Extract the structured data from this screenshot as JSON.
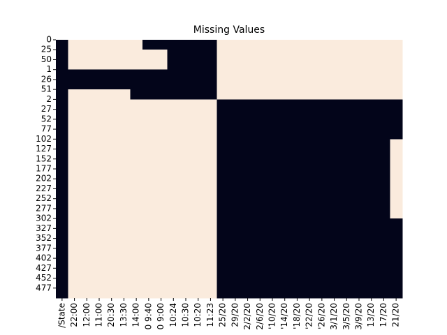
{
  "chart_data": {
    "type": "heatmap",
    "title": "Missing Values",
    "colors": {
      "0": "#03051a",
      "1": "#faebdd"
    },
    "x_labels": [
      "/State",
      "22:00",
      "12:00",
      "11:00",
      "20:30",
      "13:30",
      "14:00",
      "0 9:40",
      "0 9:00",
      "10:24",
      "10:30",
      "10:20",
      "11:23",
      "25/20",
      "29/20",
      "2/2/20",
      "2/6/20",
      "'10/20",
      "'14/20",
      "'18/20",
      "'22/20",
      "'26/20",
      "3/1/20",
      "3/5/20",
      "3/9/20",
      "13/20",
      "17/20",
      "21/20"
    ],
    "y_labels": [
      "0",
      "25",
      "50",
      "1",
      "26",
      "51",
      "2",
      "27",
      "52",
      "77",
      "102",
      "127",
      "152",
      "177",
      "202",
      "227",
      "252",
      "277",
      "302",
      "327",
      "352",
      "377",
      "402",
      "427",
      "452",
      "477"
    ],
    "values": [
      [
        0,
        1,
        1,
        1,
        1,
        1,
        1,
        0,
        0,
        0,
        0,
        0,
        0,
        1,
        1,
        1,
        1,
        1,
        1,
        1,
        1,
        1,
        1,
        1,
        1,
        1,
        1,
        1
      ],
      [
        0,
        1,
        1,
        1,
        1,
        1,
        1,
        1,
        1,
        0,
        0,
        0,
        0,
        1,
        1,
        1,
        1,
        1,
        1,
        1,
        1,
        1,
        1,
        1,
        1,
        1,
        1,
        1
      ],
      [
        0,
        1,
        1,
        1,
        1,
        1,
        1,
        1,
        1,
        0,
        0,
        0,
        0,
        1,
        1,
        1,
        1,
        1,
        1,
        1,
        1,
        1,
        1,
        1,
        1,
        1,
        1,
        1
      ],
      [
        0,
        0,
        0,
        0,
        0,
        0,
        0,
        0,
        0,
        0,
        0,
        0,
        0,
        1,
        1,
        1,
        1,
        1,
        1,
        1,
        1,
        1,
        1,
        1,
        1,
        1,
        1,
        1
      ],
      [
        0,
        0,
        0,
        0,
        0,
        0,
        0,
        0,
        0,
        0,
        0,
        0,
        0,
        1,
        1,
        1,
        1,
        1,
        1,
        1,
        1,
        1,
        1,
        1,
        1,
        1,
        1,
        1
      ],
      [
        0,
        1,
        1,
        1,
        1,
        1,
        0,
        0,
        0,
        0,
        0,
        0,
        0,
        1,
        1,
        1,
        1,
        1,
        1,
        1,
        1,
        1,
        1,
        1,
        1,
        1,
        1,
        1
      ],
      [
        0,
        1,
        1,
        1,
        1,
        1,
        1,
        1,
        1,
        1,
        1,
        1,
        1,
        0,
        0,
        0,
        0,
        0,
        0,
        0,
        0,
        0,
        0,
        0,
        0,
        0,
        0,
        0
      ],
      [
        0,
        1,
        1,
        1,
        1,
        1,
        1,
        1,
        1,
        1,
        1,
        1,
        1,
        0,
        0,
        0,
        0,
        0,
        0,
        0,
        0,
        0,
        0,
        0,
        0,
        0,
        0,
        0
      ],
      [
        0,
        1,
        1,
        1,
        1,
        1,
        1,
        1,
        1,
        1,
        1,
        1,
        1,
        0,
        0,
        0,
        0,
        0,
        0,
        0,
        0,
        0,
        0,
        0,
        0,
        0,
        0,
        0
      ],
      [
        0,
        1,
        1,
        1,
        1,
        1,
        1,
        1,
        1,
        1,
        1,
        1,
        1,
        0,
        0,
        0,
        0,
        0,
        0,
        0,
        0,
        0,
        0,
        0,
        0,
        0,
        0,
        0
      ],
      [
        0,
        1,
        1,
        1,
        1,
        1,
        1,
        1,
        1,
        1,
        1,
        1,
        1,
        0,
        0,
        0,
        0,
        0,
        0,
        0,
        0,
        0,
        0,
        0,
        0,
        0,
        0,
        1
      ],
      [
        0,
        1,
        1,
        1,
        1,
        1,
        1,
        1,
        1,
        1,
        1,
        1,
        1,
        0,
        0,
        0,
        0,
        0,
        0,
        0,
        0,
        0,
        0,
        0,
        0,
        0,
        0,
        1
      ],
      [
        0,
        1,
        1,
        1,
        1,
        1,
        1,
        1,
        1,
        1,
        1,
        1,
        1,
        0,
        0,
        0,
        0,
        0,
        0,
        0,
        0,
        0,
        0,
        0,
        0,
        0,
        0,
        1
      ],
      [
        0,
        1,
        1,
        1,
        1,
        1,
        1,
        1,
        1,
        1,
        1,
        1,
        1,
        0,
        0,
        0,
        0,
        0,
        0,
        0,
        0,
        0,
        0,
        0,
        0,
        0,
        0,
        1
      ],
      [
        0,
        1,
        1,
        1,
        1,
        1,
        1,
        1,
        1,
        1,
        1,
        1,
        1,
        0,
        0,
        0,
        0,
        0,
        0,
        0,
        0,
        0,
        0,
        0,
        0,
        0,
        0,
        1
      ],
      [
        0,
        1,
        1,
        1,
        1,
        1,
        1,
        1,
        1,
        1,
        1,
        1,
        1,
        0,
        0,
        0,
        0,
        0,
        0,
        0,
        0,
        0,
        0,
        0,
        0,
        0,
        0,
        1
      ],
      [
        0,
        1,
        1,
        1,
        1,
        1,
        1,
        1,
        1,
        1,
        1,
        1,
        1,
        0,
        0,
        0,
        0,
        0,
        0,
        0,
        0,
        0,
        0,
        0,
        0,
        0,
        0,
        1
      ],
      [
        0,
        1,
        1,
        1,
        1,
        1,
        1,
        1,
        1,
        1,
        1,
        1,
        1,
        0,
        0,
        0,
        0,
        0,
        0,
        0,
        0,
        0,
        0,
        0,
        0,
        0,
        0,
        1
      ],
      [
        0,
        1,
        1,
        1,
        1,
        1,
        1,
        1,
        1,
        1,
        1,
        1,
        1,
        0,
        0,
        0,
        0,
        0,
        0,
        0,
        0,
        0,
        0,
        0,
        0,
        0,
        0,
        0
      ],
      [
        0,
        1,
        1,
        1,
        1,
        1,
        1,
        1,
        1,
        1,
        1,
        1,
        1,
        0,
        0,
        0,
        0,
        0,
        0,
        0,
        0,
        0,
        0,
        0,
        0,
        0,
        0,
        0
      ],
      [
        0,
        1,
        1,
        1,
        1,
        1,
        1,
        1,
        1,
        1,
        1,
        1,
        1,
        0,
        0,
        0,
        0,
        0,
        0,
        0,
        0,
        0,
        0,
        0,
        0,
        0,
        0,
        0
      ],
      [
        0,
        1,
        1,
        1,
        1,
        1,
        1,
        1,
        1,
        1,
        1,
        1,
        1,
        0,
        0,
        0,
        0,
        0,
        0,
        0,
        0,
        0,
        0,
        0,
        0,
        0,
        0,
        0
      ],
      [
        0,
        1,
        1,
        1,
        1,
        1,
        1,
        1,
        1,
        1,
        1,
        1,
        1,
        0,
        0,
        0,
        0,
        0,
        0,
        0,
        0,
        0,
        0,
        0,
        0,
        0,
        0,
        0
      ],
      [
        0,
        1,
        1,
        1,
        1,
        1,
        1,
        1,
        1,
        1,
        1,
        1,
        1,
        0,
        0,
        0,
        0,
        0,
        0,
        0,
        0,
        0,
        0,
        0,
        0,
        0,
        0,
        0
      ],
      [
        0,
        1,
        1,
        1,
        1,
        1,
        1,
        1,
        1,
        1,
        1,
        1,
        1,
        0,
        0,
        0,
        0,
        0,
        0,
        0,
        0,
        0,
        0,
        0,
        0,
        0,
        0,
        0
      ],
      [
        0,
        1,
        1,
        1,
        1,
        1,
        1,
        1,
        1,
        1,
        1,
        1,
        1,
        0,
        0,
        0,
        0,
        0,
        0,
        0,
        0,
        0,
        0,
        0,
        0,
        0,
        0,
        0
      ]
    ]
  }
}
